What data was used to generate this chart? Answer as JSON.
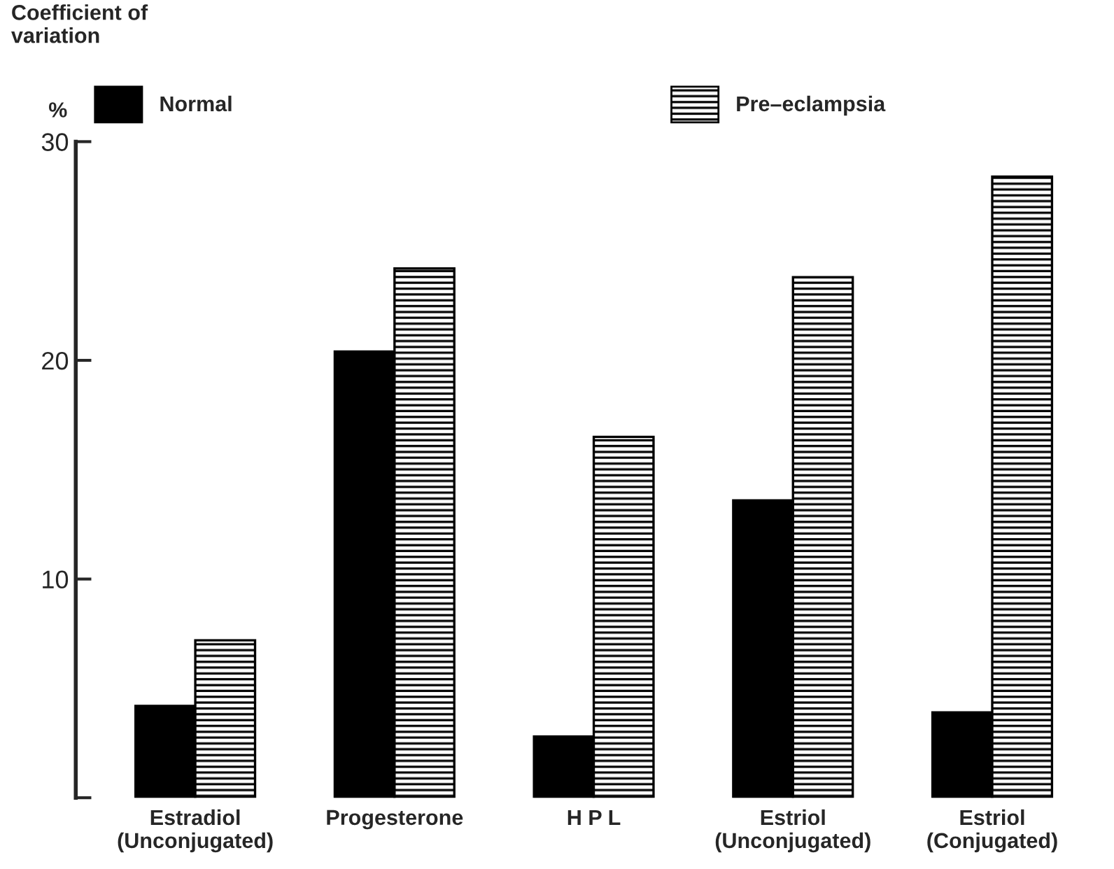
{
  "chart_data": {
    "type": "bar",
    "ylabel": "Coefficient of\nvariation",
    "annotations": [
      "%"
    ],
    "categories": [
      "Estradiol\n(Unconjugated)",
      "Progesterone",
      "H P L",
      "Estriol\n(Unconjugated)",
      "Estriol\n(Conjugated)"
    ],
    "series": [
      {
        "name": "Normal",
        "color": "#000000",
        "values": [
          4.2,
          20.4,
          2.8,
          13.6,
          3.9
        ]
      },
      {
        "name": "Pre–eclampsia",
        "color": "#000000",
        "values": [
          7.2,
          24.2,
          16.5,
          23.8,
          28.4
        ]
      }
    ],
    "ylim": [
      0,
      30
    ],
    "yticks": [
      {
        "value": 0,
        "label": null
      },
      10,
      20,
      30
    ],
    "grid": false,
    "legend": "top"
  }
}
